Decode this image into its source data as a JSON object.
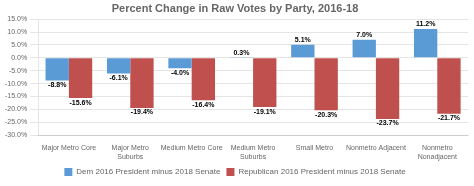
{
  "chart_data": {
    "type": "bar",
    "title": "Percent Change in Raw Votes by Party, 2016-18",
    "categories": [
      "Major Metro Core",
      "Major Metro\nSuburbs",
      "Medium Metro Core",
      "Medium Metro\nSuburbs",
      "Small Metro",
      "Nonmetro Adjacent",
      "Nonmetro\nNonadjacent"
    ],
    "series": [
      {
        "name": "Dem 2016 President minus 2018 Senate",
        "color": "#5b9bd5",
        "values": [
          -8.8,
          -6.1,
          -4.0,
          0.3,
          5.1,
          7.0,
          11.2
        ],
        "value_labels": [
          "-8.8%",
          "-6.1%",
          "-4.0%",
          "0.3%",
          "5.1%",
          "7.0%",
          "11.2%"
        ]
      },
      {
        "name": "Republican 2016 President minus 2018 Senate",
        "color": "#c0504d",
        "values": [
          -15.6,
          -19.4,
          -16.4,
          -19.1,
          -20.3,
          -23.7,
          -21.7
        ],
        "value_labels": [
          "-15.6%",
          "-19.4%",
          "-16.4%",
          "-19.1%",
          "-20.3%",
          "-23.7%",
          "-21.7%"
        ]
      }
    ],
    "ylim": [
      -30.0,
      15.0
    ],
    "yticks": [
      {
        "value": -30.0,
        "label": "-30.0%"
      },
      {
        "value": -25.0,
        "label": "-25.0%"
      },
      {
        "value": -20.0,
        "label": "-20.0%"
      },
      {
        "value": -15.0,
        "label": "-15.0%"
      },
      {
        "value": -10.0,
        "label": "-10.0%"
      },
      {
        "value": -5.0,
        "label": "-5.0%"
      },
      {
        "value": 0.0,
        "label": "0.0%"
      },
      {
        "value": 5.0,
        "label": "5.0%"
      },
      {
        "value": 10.0,
        "label": "10.0%"
      },
      {
        "value": 15.0,
        "label": "15.0%"
      }
    ],
    "grid": true,
    "legend": "bottom",
    "data_labels": true
  }
}
